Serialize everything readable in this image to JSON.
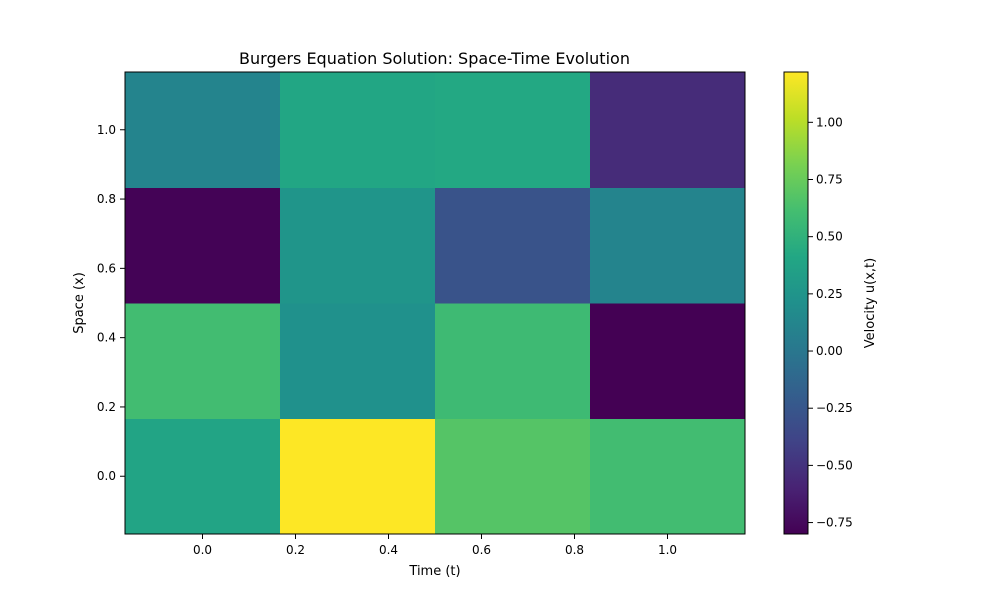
{
  "chart_data": {
    "type": "heatmap",
    "title": "Burgers Equation Solution: Space-Time Evolution",
    "xlabel": "Time (t)",
    "ylabel": "Space (x)",
    "colorbar_label": "Velocity u(x,t)",
    "colormap": "viridis",
    "x_centers": [
      0.0,
      0.333,
      0.667,
      1.0
    ],
    "y_centers": [
      0.0,
      0.333,
      0.667,
      1.0
    ],
    "xlim": [
      -0.1667,
      1.1667
    ],
    "ylim": [
      -0.1667,
      1.1667
    ],
    "x_ticks": [
      0.0,
      0.2,
      0.4,
      0.6,
      0.8,
      1.0
    ],
    "x_tick_labels": [
      "0.0",
      "0.2",
      "0.4",
      "0.6",
      "0.8",
      "1.0"
    ],
    "y_ticks": [
      0.0,
      0.2,
      0.4,
      0.6,
      0.8,
      1.0
    ],
    "y_tick_labels": [
      "0.0",
      "0.2",
      "0.4",
      "0.6",
      "0.8",
      "1.0"
    ],
    "values": [
      [
        0.39,
        1.22,
        0.68,
        0.6
      ],
      [
        0.6,
        0.22,
        0.58,
        -0.8
      ],
      [
        -0.79,
        0.25,
        -0.28,
        0.11
      ],
      [
        0.11,
        0.4,
        0.42,
        -0.54
      ]
    ],
    "clim": [
      -0.8,
      1.22
    ],
    "colorbar_ticks": [
      1.0,
      0.75,
      0.5,
      0.25,
      0.0,
      -0.25,
      -0.5,
      -0.75
    ],
    "colorbar_tick_labels": [
      "1.00",
      "0.75",
      "0.50",
      "0.25",
      "0.00",
      "−0.25",
      "−0.50",
      "−0.75"
    ]
  }
}
